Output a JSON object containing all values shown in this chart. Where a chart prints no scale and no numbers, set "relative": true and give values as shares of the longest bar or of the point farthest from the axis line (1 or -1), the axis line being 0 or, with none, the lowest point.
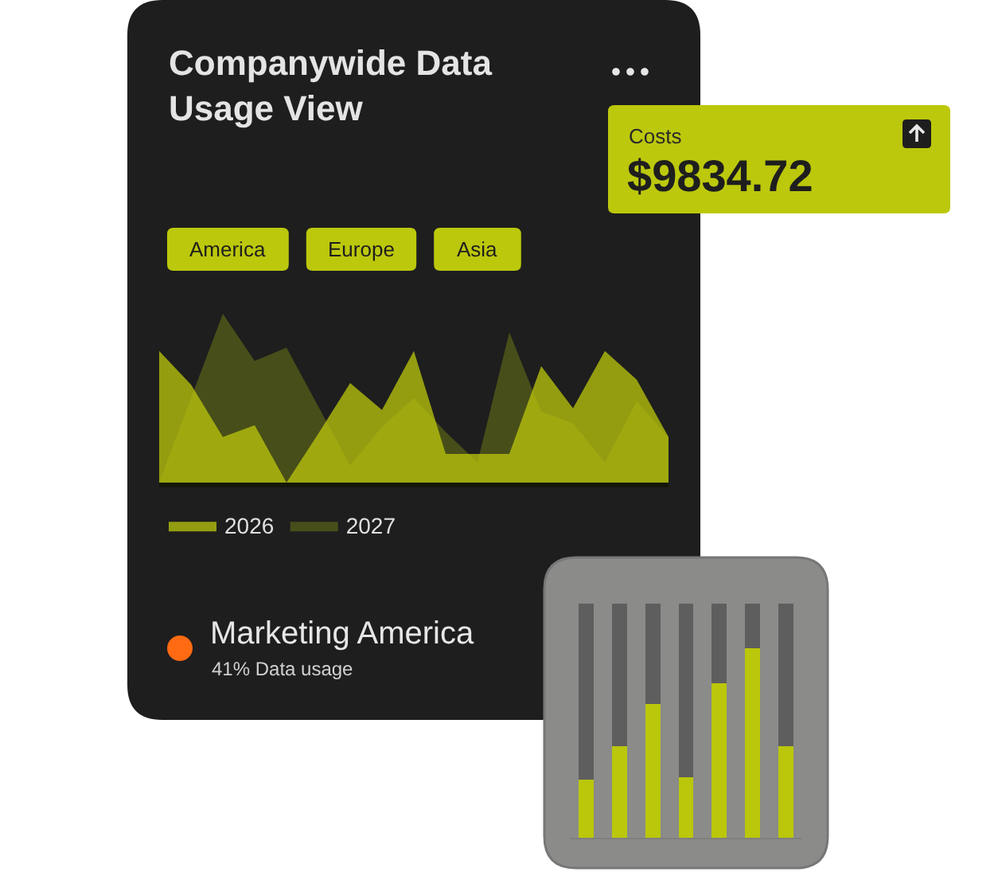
{
  "chart_data": [
    {
      "type": "area",
      "title": "Companywide Data Usage View",
      "annotations": [
        "America",
        "Europe",
        "Asia"
      ],
      "categories": [
        null,
        null,
        null,
        null,
        null,
        null,
        null,
        null,
        null,
        null,
        null,
        null,
        null,
        null,
        null,
        null,
        null
      ],
      "relative": true,
      "legend": "bottom left",
      "series": [
        {
          "name": "2026",
          "color": "#bcc80c",
          "values": [
            0.78,
            0.58,
            0.27,
            0.34,
            0,
            0.29,
            0.59,
            0.43,
            0.78,
            0.17,
            0.17,
            0.17,
            0.69,
            0.44,
            0.78,
            0.61,
            0.27
          ]
        },
        {
          "name": "2027",
          "color": "#4d5318",
          "values": [
            0,
            0.5,
            1,
            0.72,
            0.8,
            0.45,
            0.1,
            0.33,
            0.5,
            0.3,
            0.12,
            0.89,
            0.42,
            0.35,
            0.12,
            0.48,
            0.27
          ]
        }
      ]
    },
    {
      "type": "other",
      "title": "Costs",
      "annotations": [
        "$9834.72"
      ]
    },
    {
      "type": "other",
      "title": "Marketing America",
      "annotations": [
        "41% Data usage"
      ]
    },
    {
      "type": "bar",
      "categories": [
        null,
        null,
        null,
        null,
        null,
        null,
        null
      ],
      "relative": true,
      "stacked": true,
      "series": [
        {
          "color": "#bac70b",
          "values": [
            0.25,
            0.39,
            0.57,
            0.26,
            0.66,
            0.81,
            0.39
          ]
        },
        {
          "color": "#5e5e5e",
          "values": [
            0.75,
            0.61,
            0.43,
            0.74,
            0.34,
            0.19,
            0.61
          ]
        }
      ]
    }
  ]
}
